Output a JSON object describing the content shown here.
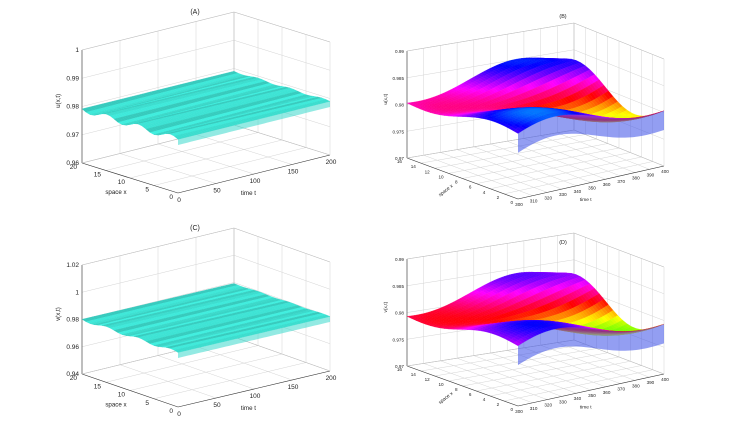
{
  "chart_data": [
    {
      "id": "A",
      "type": "surface",
      "title": "(A)",
      "xlabel": "space x",
      "ylabel": "time t",
      "zlabel": "u(x,t)",
      "x_ticks": [
        "0",
        "5",
        "10",
        "15",
        "20"
      ],
      "y_ticks": [
        "0",
        "50",
        "100",
        "150",
        "200"
      ],
      "z_ticks": [
        "0.96",
        "0.97",
        "0.98",
        "0.99",
        "1"
      ],
      "xlim": [
        0,
        20
      ],
      "ylim": [
        0,
        200
      ],
      "zlim": [
        0.96,
        1.0
      ],
      "surface": {
        "mean": 0.979,
        "oscillation_amplitude": 0.001,
        "color": "#40f0e0"
      }
    },
    {
      "id": "B",
      "type": "surface",
      "title": "(B)",
      "xlabel": "space x",
      "ylabel": "time t",
      "zlabel": "u(x,t)",
      "x_ticks": [
        "0",
        "2",
        "4",
        "6",
        "8",
        "10",
        "12",
        "14",
        "16"
      ],
      "y_ticks": [
        "300",
        "310",
        "320",
        "330",
        "340",
        "350",
        "360",
        "370",
        "380",
        "390",
        "400"
      ],
      "z_ticks": [
        "0.97",
        "0.975",
        "0.98",
        "0.985",
        "0.99"
      ],
      "xlim": [
        0,
        16
      ],
      "ylim": [
        300,
        400
      ],
      "zlim": [
        0.97,
        0.99
      ],
      "surface": {
        "mean": 0.981,
        "oscillation_amplitude": 0.004,
        "colormap": "hsv"
      }
    },
    {
      "id": "C",
      "type": "surface",
      "title": "(C)",
      "xlabel": "space x",
      "ylabel": "time t",
      "zlabel": "v(x,t)",
      "x_ticks": [
        "0",
        "5",
        "10",
        "15",
        "20"
      ],
      "y_ticks": [
        "0",
        "50",
        "100",
        "150",
        "200"
      ],
      "z_ticks": [
        "0.94",
        "0.96",
        "0.98",
        "1",
        "1.02"
      ],
      "xlim": [
        0,
        20
      ],
      "ylim": [
        0,
        200
      ],
      "zlim": [
        0.94,
        1.02
      ],
      "surface": {
        "mean": 0.98,
        "oscillation_amplitude": 0.001,
        "color": "#40f0e0"
      }
    },
    {
      "id": "D",
      "type": "surface",
      "title": "(D)",
      "xlabel": "space x",
      "ylabel": "time t",
      "zlabel": "v(x,t)",
      "x_ticks": [
        "0",
        "2",
        "4",
        "6",
        "8",
        "10",
        "12",
        "14",
        "16"
      ],
      "y_ticks": [
        "300",
        "310",
        "320",
        "330",
        "340",
        "350",
        "360",
        "370",
        "380",
        "390",
        "400"
      ],
      "z_ticks": [
        "0.97",
        "0.975",
        "0.98",
        "0.985",
        "0.99"
      ],
      "xlim": [
        0,
        16
      ],
      "ylim": [
        300,
        400
      ],
      "zlim": [
        0.97,
        0.99
      ],
      "surface": {
        "mean": 0.98,
        "oscillation_amplitude": 0.004,
        "colormap": "hsv"
      }
    }
  ]
}
